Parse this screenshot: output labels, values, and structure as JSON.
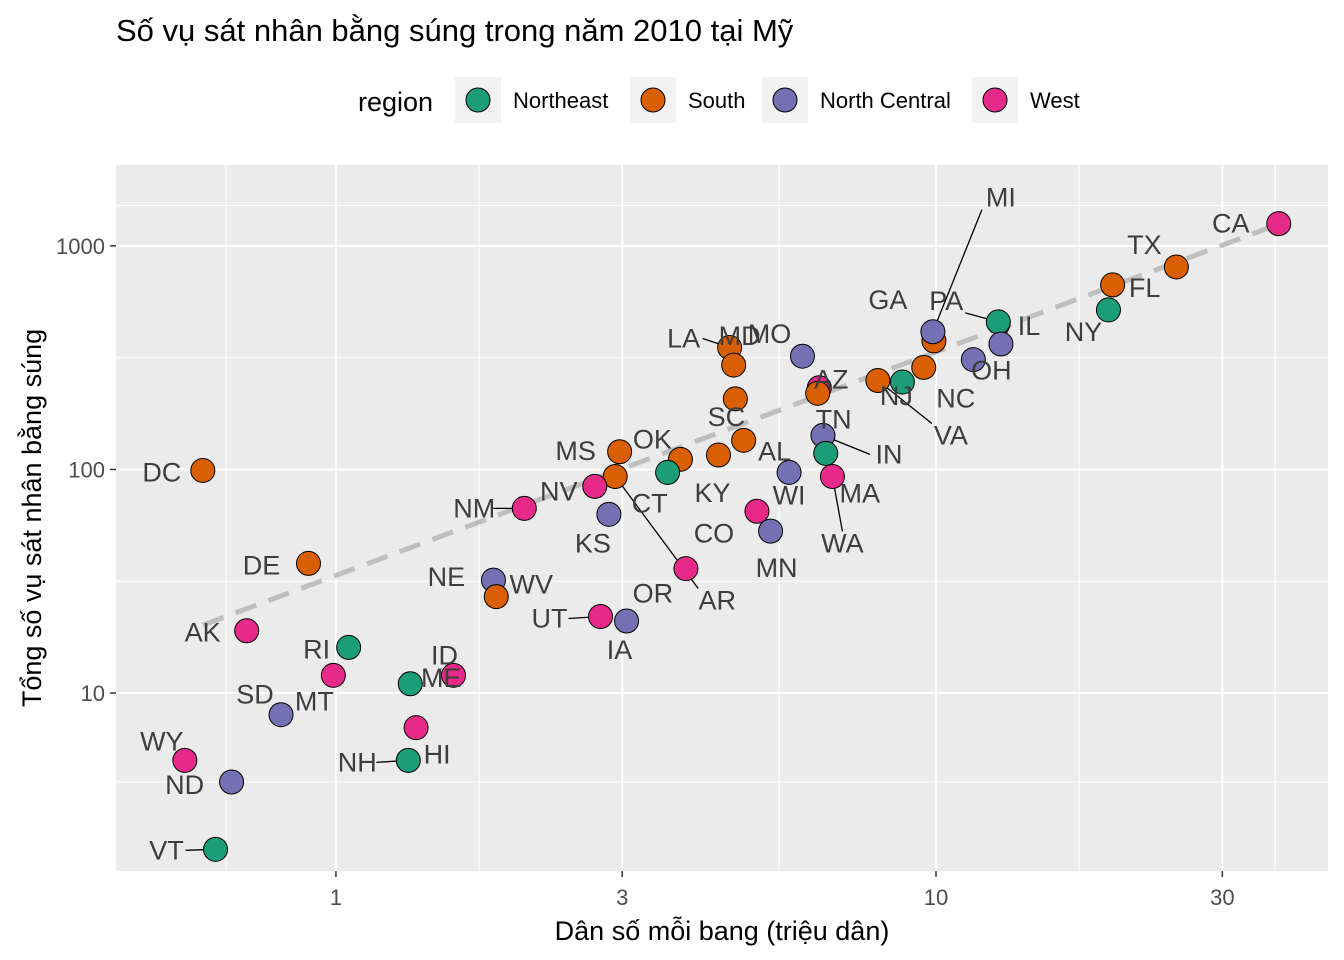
{
  "chart_data": {
    "type": "scatter",
    "title": "Số vụ sát nhân bằng súng trong năm 2010 tại Mỹ",
    "xlabel": "Dân số mỗi bang (triệu dân)",
    "ylabel": "Tổng số vụ sát nhân bằng súng",
    "x_scale": "log10",
    "y_scale": "log10",
    "xlim": [
      0.43,
      45
    ],
    "ylim": [
      1.6,
      2300
    ],
    "x_ticks": [
      1,
      3,
      10,
      30
    ],
    "x_tick_labels": [
      "1",
      "3",
      "10",
      "30"
    ],
    "y_ticks": [
      10,
      100,
      1000
    ],
    "y_tick_labels": [
      "10",
      "100",
      "1000"
    ],
    "grid": true,
    "legend": {
      "title": "region",
      "position": "top",
      "entries": [
        {
          "key": "Northeast",
          "label": "Northeast",
          "color": "#1B9E77"
        },
        {
          "key": "South",
          "label": "South",
          "color": "#D95F02"
        },
        {
          "key": "North Central",
          "label": "North Central",
          "color": "#7570B3"
        },
        {
          "key": "West",
          "label": "West",
          "color": "#E7298A"
        }
      ]
    },
    "trend_line": {
      "style": "dashed",
      "color": "#bfbfbf",
      "slope": 1,
      "intercept": 1.526,
      "x_range": [
        0.6,
        37.3
      ]
    },
    "points": [
      {
        "abb": "CA",
        "region": "West",
        "x": 37.25,
        "y": 1257
      },
      {
        "abb": "TX",
        "region": "South",
        "x": 25.15,
        "y": 805
      },
      {
        "abb": "FL",
        "region": "South",
        "x": 19.69,
        "y": 669
      },
      {
        "abb": "NY",
        "region": "Northeast",
        "x": 19.38,
        "y": 517
      },
      {
        "abb": "PA",
        "region": "Northeast",
        "x": 12.7,
        "y": 457
      },
      {
        "abb": "GA",
        "region": "South",
        "x": 9.92,
        "y": 376
      },
      {
        "abb": "MI",
        "region": "North Central",
        "x": 9.88,
        "y": 413
      },
      {
        "abb": "IL",
        "region": "North Central",
        "x": 12.83,
        "y": 364
      },
      {
        "abb": "OH",
        "region": "North Central",
        "x": 11.54,
        "y": 310
      },
      {
        "abb": "NC",
        "region": "South",
        "x": 9.54,
        "y": 286
      },
      {
        "abb": "LA",
        "region": "South",
        "x": 4.53,
        "y": 351
      },
      {
        "abb": "MO",
        "region": "North Central",
        "x": 5.99,
        "y": 321
      },
      {
        "abb": "MD",
        "region": "South",
        "x": 4.6,
        "y": 293
      },
      {
        "abb": "SC",
        "region": "South",
        "x": 4.63,
        "y": 207
      },
      {
        "abb": "VA",
        "region": "South",
        "x": 8.0,
        "y": 250
      },
      {
        "abb": "NJ",
        "region": "Northeast",
        "x": 8.79,
        "y": 246
      },
      {
        "abb": "AZ",
        "region": "West",
        "x": 6.39,
        "y": 232
      },
      {
        "abb": "TN",
        "region": "South",
        "x": 6.35,
        "y": 219
      },
      {
        "abb": "IN",
        "region": "North Central",
        "x": 6.48,
        "y": 142
      },
      {
        "abb": "AL",
        "region": "South",
        "x": 4.78,
        "y": 135
      },
      {
        "abb": "KY",
        "region": "South",
        "x": 4.34,
        "y": 116
      },
      {
        "abb": "MA",
        "region": "Northeast",
        "x": 6.55,
        "y": 118
      },
      {
        "abb": "MS",
        "region": "South",
        "x": 2.97,
        "y": 120
      },
      {
        "abb": "OK",
        "region": "South",
        "x": 3.75,
        "y": 111
      },
      {
        "abb": "CT",
        "region": "Northeast",
        "x": 3.57,
        "y": 97
      },
      {
        "abb": "WI",
        "region": "North Central",
        "x": 5.69,
        "y": 97
      },
      {
        "abb": "WA",
        "region": "West",
        "x": 6.72,
        "y": 93
      },
      {
        "abb": "AR",
        "region": "South",
        "x": 2.92,
        "y": 93
      },
      {
        "abb": "DC",
        "region": "South",
        "x": 0.6,
        "y": 99
      },
      {
        "abb": "NV",
        "region": "West",
        "x": 2.7,
        "y": 84
      },
      {
        "abb": "NM",
        "region": "West",
        "x": 2.06,
        "y": 67
      },
      {
        "abb": "KS",
        "region": "North Central",
        "x": 2.85,
        "y": 63
      },
      {
        "abb": "CO",
        "region": "West",
        "x": 5.03,
        "y": 65
      },
      {
        "abb": "MN",
        "region": "North Central",
        "x": 5.3,
        "y": 53
      },
      {
        "abb": "DE",
        "region": "South",
        "x": 0.9,
        "y": 38
      },
      {
        "abb": "OR",
        "region": "West",
        "x": 3.83,
        "y": 36
      },
      {
        "abb": "NE",
        "region": "North Central",
        "x": 1.83,
        "y": 32
      },
      {
        "abb": "WV",
        "region": "South",
        "x": 1.85,
        "y": 27
      },
      {
        "abb": "UT",
        "region": "West",
        "x": 2.76,
        "y": 22
      },
      {
        "abb": "IA",
        "region": "North Central",
        "x": 3.05,
        "y": 21
      },
      {
        "abb": "AK",
        "region": "West",
        "x": 0.71,
        "y": 19
      },
      {
        "abb": "RI",
        "region": "Northeast",
        "x": 1.05,
        "y": 16
      },
      {
        "abb": "ID",
        "region": "West",
        "x": 1.57,
        "y": 12
      },
      {
        "abb": "MT",
        "region": "West",
        "x": 0.99,
        "y": 12
      },
      {
        "abb": "ME",
        "region": "Northeast",
        "x": 1.33,
        "y": 11
      },
      {
        "abb": "SD",
        "region": "North Central",
        "x": 0.81,
        "y": 8
      },
      {
        "abb": "HI",
        "region": "West",
        "x": 1.36,
        "y": 7
      },
      {
        "abb": "NH",
        "region": "Northeast",
        "x": 1.32,
        "y": 5
      },
      {
        "abb": "WY",
        "region": "West",
        "x": 0.56,
        "y": 5
      },
      {
        "abb": "ND",
        "region": "North Central",
        "x": 0.67,
        "y": 4
      },
      {
        "abb": "VT",
        "region": "Northeast",
        "x": 0.63,
        "y": 2
      }
    ]
  }
}
